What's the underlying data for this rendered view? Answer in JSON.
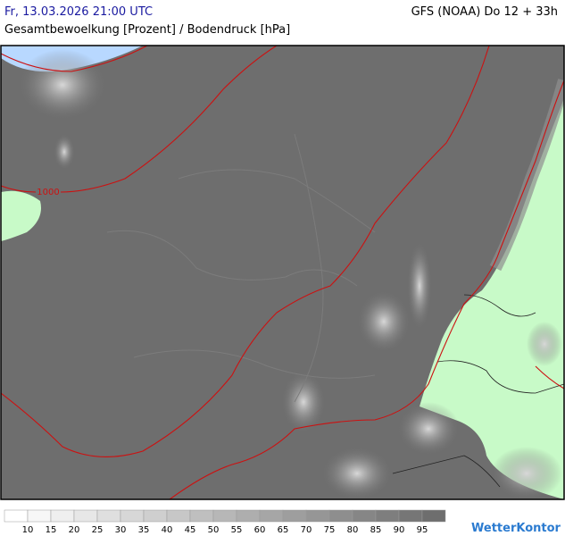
{
  "header": {
    "datetime": "Fr, 13.03.2026 21:00 UTC",
    "model": "GFS (NOAA) Do 12 + 33h",
    "subtitle": "Gesamtbewoelkung [Prozent] / Bodendruck [hPa]"
  },
  "map": {
    "isobar_label": "1000"
  },
  "legend": {
    "labels": [
      10,
      15,
      20,
      25,
      30,
      35,
      40,
      45,
      50,
      55,
      60,
      65,
      70,
      75,
      80,
      85,
      90,
      95
    ]
  },
  "logo": "WetterKontor"
}
